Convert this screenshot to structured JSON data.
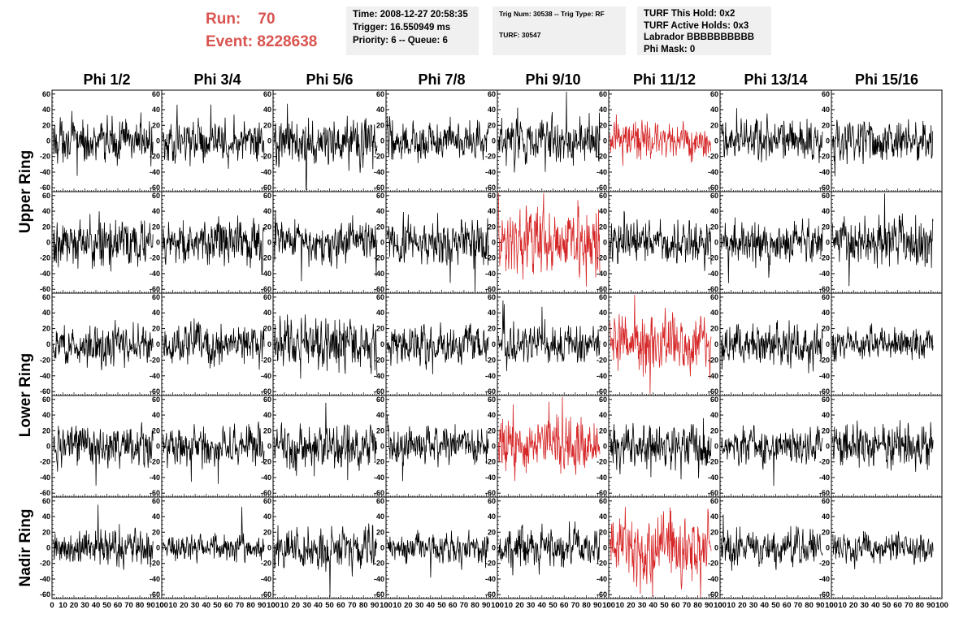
{
  "header": {
    "run_label": "Run:",
    "run_value": "70",
    "event_label": "Event:",
    "event_value": "8228638",
    "time": "Time: 2008-12-27 20:58:35",
    "trigger": "Trigger: 16.550949 ms",
    "priority": "Priority: 6 -- Queue: 6",
    "trig_num": "Trig Num: 30538 -- Trig Type: RF",
    "turf": "TURF: 30547",
    "turf_this_hold": "TURF This Hold: 0x2",
    "turf_active_holds": "TURF Active Holds: 0x3",
    "labrador": "Labrador BBBBBBBBBB",
    "phi_mask": "Phi Mask: 0"
  },
  "colors": {
    "normal_trace": "#000000",
    "triggered_trace": "#d62728",
    "header_red": "#d9534f",
    "info_bg": "#f0f0f0"
  },
  "chart_data": {
    "type": "line",
    "columns": [
      "Phi 1/2",
      "Phi 3/4",
      "Phi 5/6",
      "Phi 7/8",
      "Phi 9/10",
      "Phi 11/12",
      "Phi 13/14",
      "Phi 15/16"
    ],
    "ring_labels": [
      "Upper Ring",
      "Lower Ring",
      "Nadir Ring"
    ],
    "rows": 5,
    "row_groups": [
      {
        "label": "Upper Ring",
        "rows": [
          0,
          1
        ]
      },
      {
        "label": "Lower Ring",
        "rows": [
          2,
          3
        ]
      },
      {
        "label": "Nadir Ring",
        "rows": [
          4
        ]
      }
    ],
    "xlim": [
      0,
      100
    ],
    "ylim": [
      -65,
      65
    ],
    "yticks": [
      -60,
      -40,
      -20,
      0,
      20,
      40,
      60
    ],
    "xtick_labels": [
      "0",
      "10",
      "20",
      "30",
      "40",
      "50",
      "60",
      "70",
      "80",
      "90",
      "100"
    ],
    "highlighted": [
      [
        0,
        5
      ],
      [
        1,
        4
      ],
      [
        2,
        5
      ],
      [
        3,
        4
      ],
      [
        4,
        5
      ]
    ],
    "trace_amplitude": [
      [
        16,
        15,
        18,
        15,
        17,
        14,
        16,
        16
      ],
      [
        17,
        18,
        16,
        17,
        26,
        16,
        15,
        18
      ],
      [
        15,
        15,
        19,
        14,
        14,
        22,
        16,
        12
      ],
      [
        15,
        15,
        17,
        14,
        19,
        15,
        13,
        16
      ],
      [
        14,
        10,
        15,
        11,
        14,
        26,
        14,
        11
      ]
    ]
  }
}
